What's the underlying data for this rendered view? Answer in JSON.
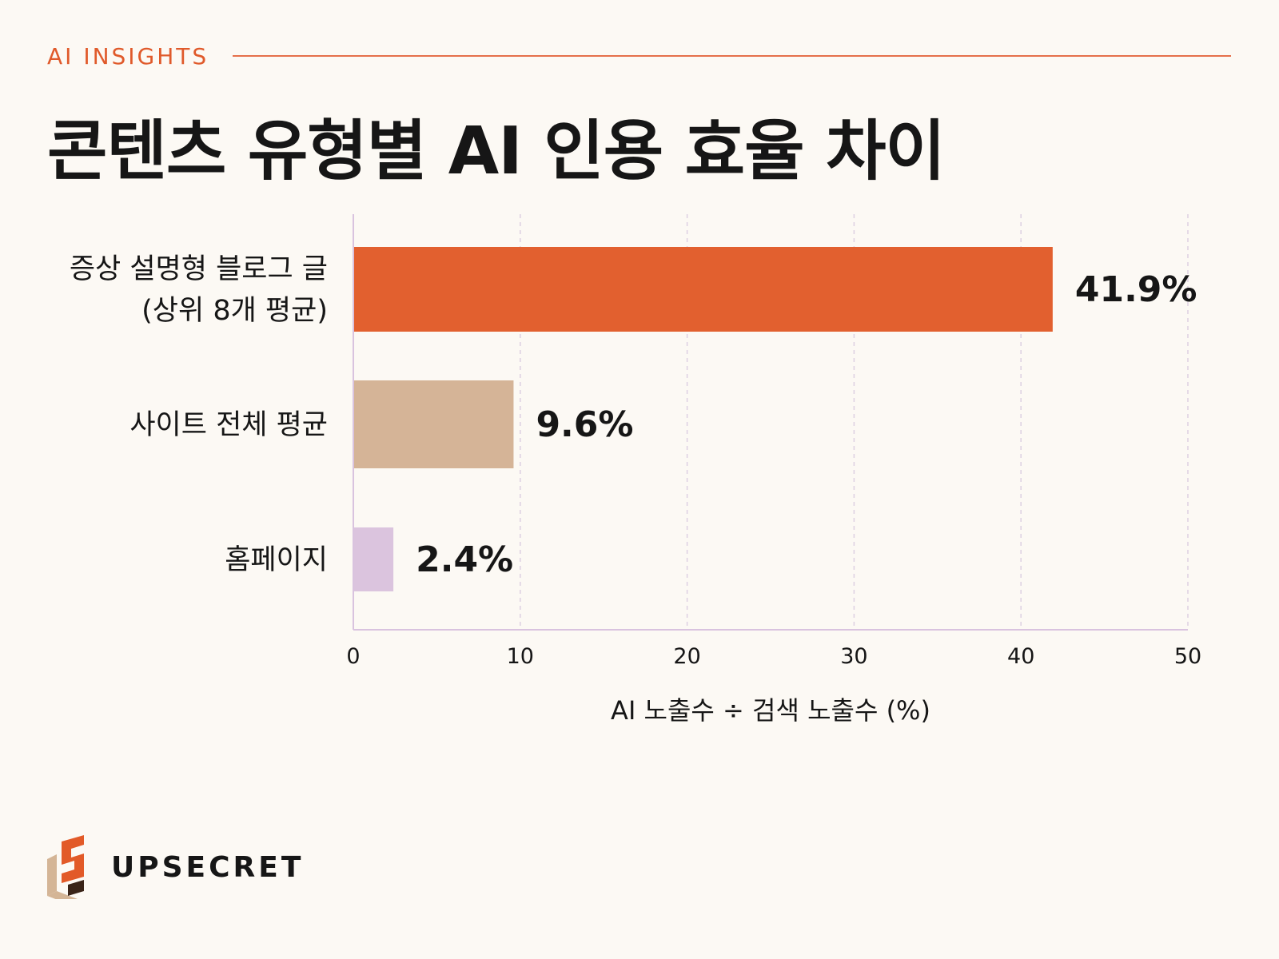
{
  "header": {
    "eyebrow": "AI INSIGHTS",
    "title": "콘텐츠 유형별 AI 인용 효율 차이"
  },
  "brand": {
    "name": "UPSECRET",
    "logo_icon": "upsecret-logo-icon"
  },
  "colors": {
    "background": "#fcf9f4",
    "accent": "#e05a2b",
    "axis": "#d9c3df",
    "text": "#161616"
  },
  "chart_data": {
    "type": "bar",
    "orientation": "horizontal",
    "categories": [
      [
        "증상 설명형 블로그 글",
        "(상위 8개 평균)"
      ],
      [
        "사이트 전체 평균"
      ],
      [
        "홈페이지"
      ]
    ],
    "values": [
      41.9,
      9.6,
      2.4
    ],
    "value_labels": [
      "41.9%",
      "9.6%",
      "2.4%"
    ],
    "bar_colors": [
      "#e2602f",
      "#d5b497",
      "#dbc4de"
    ],
    "xlabel": "AI 노출수 ÷ 검색 노출수 (%)",
    "ylabel": "",
    "xlim": [
      0,
      50
    ],
    "xticks": [
      0,
      10,
      20,
      30,
      40,
      50
    ],
    "grid": "vertical dashed",
    "legend": "none"
  }
}
